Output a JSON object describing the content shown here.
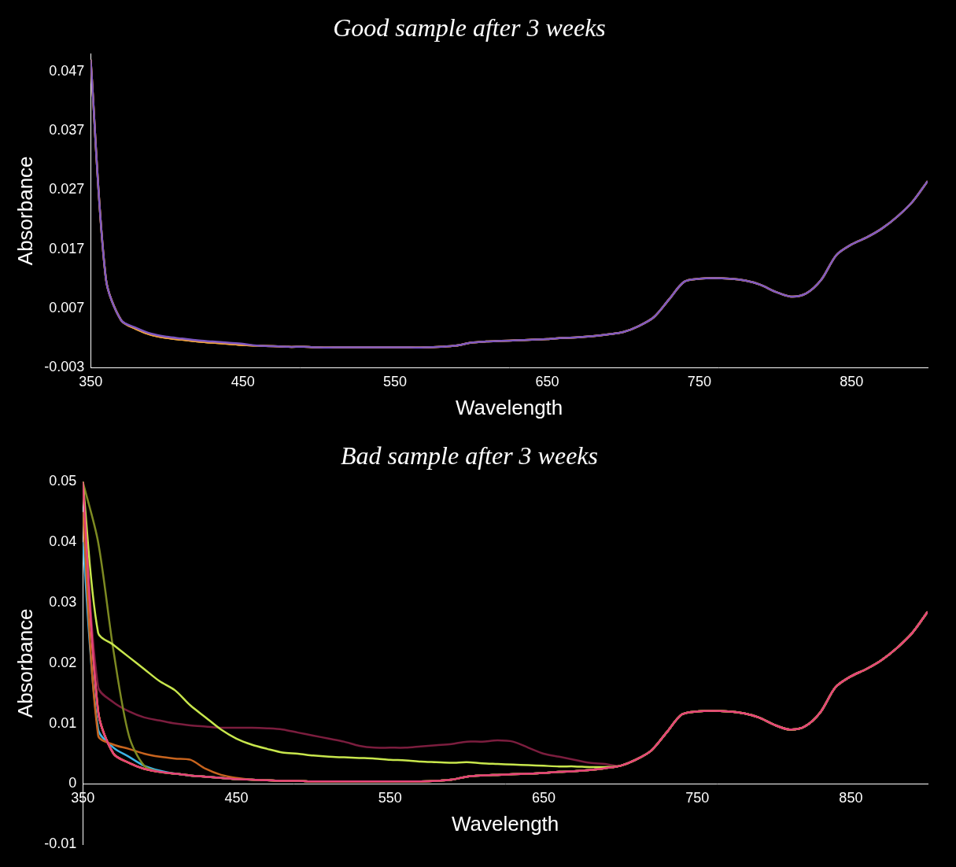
{
  "chart_data": [
    {
      "type": "line",
      "title": "Good sample after 3 weeks",
      "x_label": "Wavelength",
      "y_label": "Absorbance",
      "x": [
        350,
        360,
        370,
        380,
        390,
        400,
        410,
        420,
        430,
        440,
        450,
        460,
        470,
        480,
        490,
        500,
        510,
        520,
        530,
        540,
        550,
        560,
        570,
        580,
        590,
        600,
        610,
        620,
        630,
        640,
        650,
        660,
        670,
        680,
        690,
        700,
        710,
        720,
        730,
        740,
        750,
        760,
        770,
        780,
        790,
        800,
        810,
        820,
        830,
        840,
        850,
        860,
        870,
        880,
        890,
        900
      ],
      "series": [
        {
          "color": "#7e57c2",
          "values": [
            0.049,
            0.012,
            0.005,
            0.0037,
            0.0027,
            0.0022,
            0.0019,
            0.0016,
            0.0014,
            0.0012,
            0.001,
            0.0007,
            0.0006,
            0.0005,
            0.0005,
            0.0004,
            0.0004,
            0.0004,
            0.0004,
            0.0004,
            0.0004,
            0.0004,
            0.0004,
            0.0005,
            0.0007,
            0.0012,
            0.0014,
            0.0015,
            0.0016,
            0.0017,
            0.0018,
            0.002,
            0.0021,
            0.0023,
            0.0026,
            0.003,
            0.004,
            0.0055,
            0.0085,
            0.0115,
            0.012,
            0.0121,
            0.012,
            0.0117,
            0.011,
            0.0098,
            0.009,
            0.0095,
            0.0118,
            0.016,
            0.0178,
            0.019,
            0.0205,
            0.0225,
            0.025,
            0.0285
          ]
        },
        {
          "color": "#f0a040",
          "values": [
            0.049,
            0.012,
            0.005,
            0.0035,
            0.0025,
            0.002,
            0.0017,
            0.0014,
            0.0012,
            0.001,
            0.0008,
            0.0007,
            0.0006,
            0.0005,
            0.0005,
            0.0004,
            0.0004,
            0.0004,
            0.0004,
            0.0004,
            0.0004,
            0.0004,
            0.0004,
            0.0005,
            0.0007,
            0.0012,
            0.0014,
            0.0015,
            0.0016,
            0.0017,
            0.0018,
            0.002,
            0.0021,
            0.0023,
            0.0026,
            0.003,
            0.004,
            0.0055,
            0.0085,
            0.0115,
            0.012,
            0.0121,
            0.012,
            0.0117,
            0.011,
            0.0098,
            0.009,
            0.0095,
            0.0118,
            0.016,
            0.0178,
            0.019,
            0.0205,
            0.0225,
            0.025,
            0.0285
          ]
        },
        {
          "color": "#f5c242",
          "values": [
            0.049,
            0.012,
            0.005,
            0.0035,
            0.0025,
            0.002,
            0.0017,
            0.0014,
            0.0012,
            0.001,
            0.0008,
            0.0007,
            0.0006,
            0.0005,
            0.0005,
            0.0004,
            0.0004,
            0.0004,
            0.0004,
            0.0004,
            0.0004,
            0.0004,
            0.0004,
            0.0005,
            0.0007,
            0.0012,
            0.0014,
            0.0015,
            0.0016,
            0.0017,
            0.0018,
            0.002,
            0.0021,
            0.0023,
            0.0026,
            0.003,
            0.004,
            0.0055,
            0.0085,
            0.0115,
            0.012,
            0.0121,
            0.012,
            0.0117,
            0.011,
            0.0098,
            0.009,
            0.0095,
            0.0118,
            0.016,
            0.0178,
            0.019,
            0.0205,
            0.0225,
            0.025,
            0.0285
          ]
        }
      ],
      "xlim": [
        350,
        900
      ],
      "ylim": [
        -0.003,
        0.05
      ],
      "xticks": [
        350,
        450,
        550,
        650,
        750,
        850
      ],
      "yticks": [
        -0.003,
        0.007,
        0.017,
        0.027,
        0.037,
        0.047
      ],
      "grid": false
    },
    {
      "type": "line",
      "title": "Bad sample after 3 weeks",
      "x_label": "Wavelength",
      "y_label": "Absorbance",
      "x": [
        350,
        360,
        370,
        380,
        390,
        400,
        410,
        420,
        430,
        440,
        450,
        460,
        470,
        480,
        490,
        500,
        510,
        520,
        530,
        540,
        550,
        560,
        570,
        580,
        590,
        600,
        610,
        620,
        630,
        640,
        650,
        660,
        670,
        680,
        690,
        700,
        710,
        720,
        730,
        740,
        750,
        760,
        770,
        780,
        790,
        800,
        810,
        820,
        830,
        840,
        850,
        860,
        870,
        880,
        890,
        900
      ],
      "series": [
        {
          "color": "#e6407a",
          "values": [
            0.05,
            0.012,
            0.005,
            0.0035,
            0.0025,
            0.002,
            0.0017,
            0.0014,
            0.0012,
            0.001,
            0.0008,
            0.0007,
            0.0006,
            0.0005,
            0.0005,
            0.0004,
            0.0004,
            0.0004,
            0.0004,
            0.0004,
            0.0004,
            0.0004,
            0.0004,
            0.0005,
            0.0007,
            0.0012,
            0.0014,
            0.0015,
            0.0016,
            0.0017,
            0.0018,
            0.002,
            0.0021,
            0.0023,
            0.0026,
            0.003,
            0.004,
            0.0055,
            0.0085,
            0.0115,
            0.012,
            0.0121,
            0.012,
            0.0117,
            0.011,
            0.0098,
            0.009,
            0.0095,
            0.0118,
            0.016,
            0.0178,
            0.019,
            0.0205,
            0.0225,
            0.025,
            0.0285
          ]
        },
        {
          "color": "#c8e64c",
          "values": [
            0.05,
            0.025,
            0.023,
            0.021,
            0.019,
            0.017,
            0.0155,
            0.013,
            0.011,
            0.009,
            0.0075,
            0.0065,
            0.0058,
            0.0052,
            0.005,
            0.0047,
            0.0045,
            0.0044,
            0.0043,
            0.0042,
            0.004,
            0.0039,
            0.0037,
            0.0036,
            0.0035,
            0.0036,
            0.0034,
            0.0033,
            0.0032,
            0.0031,
            0.003,
            0.0029,
            0.0029,
            0.0028,
            0.0028,
            0.003,
            0.004,
            0.0055,
            0.0085,
            0.0115,
            0.012,
            0.0121,
            0.012,
            0.0117,
            0.011,
            0.0098,
            0.009,
            0.0095,
            0.0118,
            0.016,
            0.0178,
            0.019,
            0.0205,
            0.0225,
            0.025,
            0.0285
          ]
        },
        {
          "color": "#7d8a22",
          "values": [
            0.05,
            0.04,
            0.022,
            0.008,
            0.003,
            0.002,
            0.0017,
            0.0014,
            0.0012,
            0.001,
            0.0008,
            0.0007,
            0.0006,
            0.0005,
            0.0005,
            0.0004,
            0.0004,
            0.0004,
            0.0004,
            0.0004,
            0.0004,
            0.0004,
            0.0004,
            0.0005,
            0.0007,
            0.0012,
            0.0014,
            0.0015,
            0.0016,
            0.0017,
            0.0018,
            0.002,
            0.0021,
            0.0023,
            0.0026,
            0.003,
            0.004,
            0.0055,
            0.0085,
            0.0115,
            0.012,
            0.0121,
            0.012,
            0.0117,
            0.011,
            0.0098,
            0.009,
            0.0095,
            0.0118,
            0.016,
            0.0178,
            0.019,
            0.0205,
            0.0225,
            0.025,
            0.0285
          ]
        },
        {
          "color": "#7b1d3e",
          "values": [
            0.05,
            0.016,
            0.0135,
            0.012,
            0.011,
            0.0105,
            0.01,
            0.0097,
            0.0095,
            0.0093,
            0.0093,
            0.0093,
            0.0092,
            0.009,
            0.0085,
            0.008,
            0.0075,
            0.007,
            0.0063,
            0.006,
            0.006,
            0.006,
            0.0062,
            0.0064,
            0.0066,
            0.007,
            0.007,
            0.0072,
            0.007,
            0.006,
            0.005,
            0.0045,
            0.004,
            0.0035,
            0.0033,
            0.003,
            0.004,
            0.0055,
            0.0085,
            0.0115,
            0.012,
            0.0121,
            0.012,
            0.0117,
            0.011,
            0.0098,
            0.009,
            0.0095,
            0.0118,
            0.016,
            0.0178,
            0.019,
            0.0205,
            0.0225,
            0.025,
            0.0285
          ]
        },
        {
          "color": "#c8641e",
          "values": [
            0.045,
            0.008,
            0.0065,
            0.0058,
            0.005,
            0.0045,
            0.0042,
            0.004,
            0.0025,
            0.0015,
            0.001,
            0.0007,
            0.0006,
            0.0005,
            0.0005,
            0.0004,
            0.0004,
            0.0004,
            0.0004,
            0.0004,
            0.0004,
            0.0004,
            0.0004,
            0.0005,
            0.0007,
            0.0012,
            0.0014,
            0.0015,
            0.0016,
            0.0017,
            0.0018,
            0.002,
            0.0021,
            0.0023,
            0.0026,
            0.003,
            0.004,
            0.0055,
            0.0085,
            0.0115,
            0.012,
            0.0121,
            0.012,
            0.0117,
            0.011,
            0.0098,
            0.009,
            0.0095,
            0.0118,
            0.016,
            0.0178,
            0.019,
            0.0205,
            0.0225,
            0.025,
            0.0285
          ]
        },
        {
          "color": "#3cb4e6",
          "values": [
            0.04,
            0.009,
            0.006,
            0.0045,
            0.003,
            0.0022,
            0.0017,
            0.0014,
            0.0012,
            0.001,
            0.0008,
            0.0007,
            0.0006,
            0.0005,
            0.0005,
            0.0004,
            0.0004,
            0.0004,
            0.0004,
            0.0004,
            0.0004,
            0.0004,
            0.0004,
            0.0005,
            0.0007,
            0.0012,
            0.0014,
            0.0015,
            0.0016,
            0.0017,
            0.0018,
            0.002,
            0.0021,
            0.0023,
            0.0026,
            0.003,
            0.004,
            0.0055,
            0.0085,
            0.0115,
            0.012,
            0.0121,
            0.012,
            0.0117,
            0.011,
            0.0098,
            0.009,
            0.0095,
            0.0118,
            0.016,
            0.0178,
            0.019,
            0.0205,
            0.0225,
            0.025,
            0.0285
          ]
        },
        {
          "color": "#f5a623",
          "values": [
            0.05,
            0.012,
            0.005,
            0.0035,
            0.0025,
            0.002,
            0.0017,
            0.0014,
            0.0012,
            0.001,
            0.0008,
            0.0007,
            0.0006,
            0.0005,
            0.0005,
            0.0004,
            0.0004,
            0.0004,
            0.0004,
            0.0004,
            0.0004,
            0.0004,
            0.0004,
            0.0005,
            0.0007,
            0.0012,
            0.0014,
            0.0015,
            0.0016,
            0.0017,
            0.0018,
            0.002,
            0.0021,
            0.0023,
            0.0026,
            0.003,
            0.004,
            0.0055,
            0.0085,
            0.0115,
            0.012,
            0.0121,
            0.012,
            0.0117,
            0.011,
            0.0098,
            0.009,
            0.0095,
            0.0118,
            0.016,
            0.0178,
            0.019,
            0.0205,
            0.0225,
            0.025,
            0.0285
          ]
        },
        {
          "color": "#f7d046",
          "values": [
            0.05,
            0.012,
            0.005,
            0.0035,
            0.0025,
            0.002,
            0.0017,
            0.0014,
            0.0012,
            0.001,
            0.0008,
            0.0007,
            0.0006,
            0.0005,
            0.0005,
            0.0004,
            0.0004,
            0.0004,
            0.0004,
            0.0004,
            0.0004,
            0.0004,
            0.0004,
            0.0005,
            0.0007,
            0.0012,
            0.0014,
            0.0015,
            0.0016,
            0.0017,
            0.0018,
            0.002,
            0.0021,
            0.0023,
            0.0026,
            0.003,
            0.004,
            0.0055,
            0.0085,
            0.0115,
            0.012,
            0.0121,
            0.012,
            0.0117,
            0.011,
            0.0098,
            0.009,
            0.0095,
            0.0118,
            0.016,
            0.0178,
            0.019,
            0.0205,
            0.0225,
            0.025,
            0.0285
          ]
        }
      ],
      "xlim": [
        350,
        900
      ],
      "ylim": [
        -0.01,
        0.05
      ],
      "xticks": [
        350,
        450,
        550,
        650,
        750,
        850
      ],
      "yticks": [
        -0.01,
        0,
        0.01,
        0.02,
        0.03,
        0.04,
        0.05
      ],
      "grid": false
    }
  ]
}
